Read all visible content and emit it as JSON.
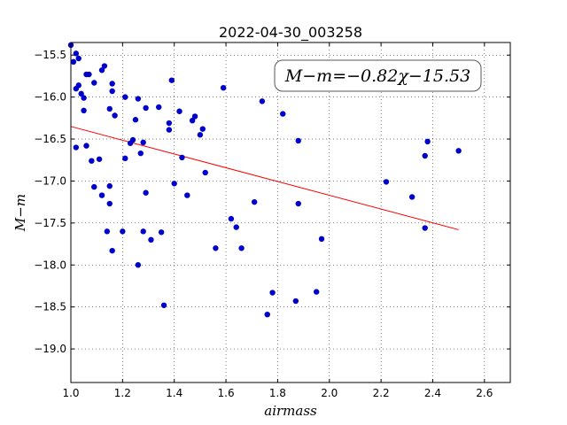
{
  "chart_data": {
    "type": "scatter",
    "title": "2022-04-30_003258",
    "xlabel": "airmass",
    "ylabel": "M−m",
    "xlim": [
      1.0,
      2.7
    ],
    "ylim": [
      -19.4,
      -15.35
    ],
    "xticks": [
      1.0,
      1.2,
      1.4,
      1.6,
      1.8,
      2.0,
      2.2,
      2.4,
      2.6
    ],
    "xtick_labels": [
      "1.0",
      "1.2",
      "1.4",
      "1.6",
      "1.8",
      "2.0",
      "2.2",
      "2.4",
      "2.6"
    ],
    "yticks": [
      -15.5,
      -16.0,
      -16.5,
      -17.0,
      -17.5,
      -18.0,
      -18.5,
      -19.0
    ],
    "ytick_labels": [
      "−15.5",
      "−16.0",
      "−16.5",
      "−17.0",
      "−17.5",
      "−18.0",
      "−18.5",
      "−19.0"
    ],
    "grid": true,
    "annotation": "M−m=−0.82χ−15.53",
    "series": [
      {
        "marker_color": "#0000cc",
        "points": [
          [
            1.0,
            -15.38
          ],
          [
            1.01,
            -15.58
          ],
          [
            1.02,
            -15.48
          ],
          [
            1.02,
            -15.9
          ],
          [
            1.03,
            -15.54
          ],
          [
            1.03,
            -15.86
          ],
          [
            1.02,
            -16.6
          ],
          [
            1.04,
            -15.96
          ],
          [
            1.05,
            -16.01
          ],
          [
            1.05,
            -16.16
          ],
          [
            1.06,
            -15.73
          ],
          [
            1.07,
            -15.73
          ],
          [
            1.06,
            -16.58
          ],
          [
            1.08,
            -16.76
          ],
          [
            1.09,
            -17.07
          ],
          [
            1.09,
            -15.83
          ],
          [
            1.11,
            -16.74
          ],
          [
            1.12,
            -15.68
          ],
          [
            1.13,
            -15.63
          ],
          [
            1.12,
            -17.17
          ],
          [
            1.14,
            -17.6
          ],
          [
            1.15,
            -17.06
          ],
          [
            1.15,
            -17.27
          ],
          [
            1.16,
            -17.83
          ],
          [
            1.15,
            -16.14
          ],
          [
            1.16,
            -15.84
          ],
          [
            1.16,
            -15.93
          ],
          [
            1.17,
            -16.22
          ],
          [
            1.2,
            -17.6
          ],
          [
            1.21,
            -16.73
          ],
          [
            1.21,
            -16.0
          ],
          [
            1.23,
            -16.55
          ],
          [
            1.24,
            -16.51
          ],
          [
            1.25,
            -16.27
          ],
          [
            1.26,
            -16.02
          ],
          [
            1.26,
            -18.0
          ],
          [
            1.27,
            -16.67
          ],
          [
            1.28,
            -16.54
          ],
          [
            1.28,
            -17.6
          ],
          [
            1.29,
            -16.13
          ],
          [
            1.29,
            -17.14
          ],
          [
            1.31,
            -17.7
          ],
          [
            1.34,
            -16.12
          ],
          [
            1.35,
            -17.61
          ],
          [
            1.36,
            -18.48
          ],
          [
            1.38,
            -16.31
          ],
          [
            1.38,
            -16.39
          ],
          [
            1.39,
            -15.8
          ],
          [
            1.4,
            -17.03
          ],
          [
            1.42,
            -16.17
          ],
          [
            1.43,
            -16.72
          ],
          [
            1.45,
            -17.17
          ],
          [
            1.47,
            -16.28
          ],
          [
            1.48,
            -16.23
          ],
          [
            1.5,
            -16.45
          ],
          [
            1.51,
            -16.38
          ],
          [
            1.52,
            -16.9
          ],
          [
            1.56,
            -17.8
          ],
          [
            1.59,
            -15.89
          ],
          [
            1.62,
            -17.45
          ],
          [
            1.64,
            -17.55
          ],
          [
            1.66,
            -17.8
          ],
          [
            1.71,
            -17.25
          ],
          [
            1.74,
            -16.05
          ],
          [
            1.76,
            -18.59
          ],
          [
            1.78,
            -18.33
          ],
          [
            1.82,
            -16.2
          ],
          [
            1.87,
            -18.43
          ],
          [
            1.88,
            -16.52
          ],
          [
            1.88,
            -17.27
          ],
          [
            1.95,
            -18.32
          ],
          [
            1.97,
            -17.69
          ],
          [
            2.22,
            -17.01
          ],
          [
            2.32,
            -17.19
          ],
          [
            2.37,
            -16.7
          ],
          [
            2.37,
            -17.56
          ],
          [
            2.38,
            -16.53
          ],
          [
            2.5,
            -16.64
          ]
        ]
      }
    ],
    "fit_line": {
      "x": [
        1.0,
        2.5
      ],
      "y": [
        -16.35,
        -17.58
      ],
      "color": "#ff0000"
    }
  }
}
